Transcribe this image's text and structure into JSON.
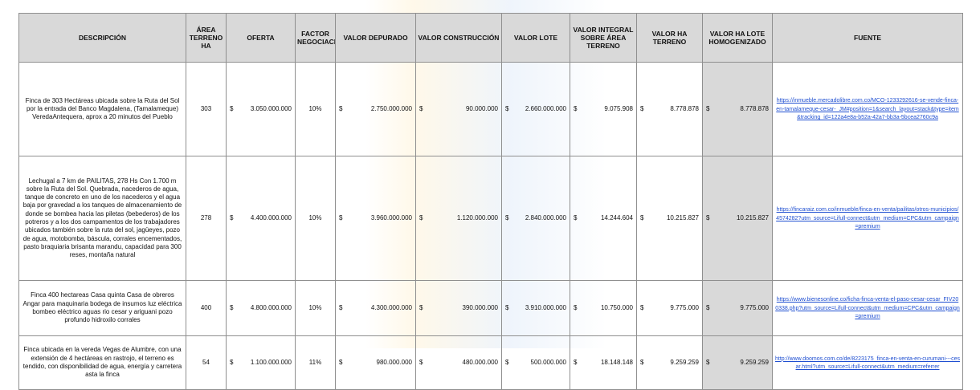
{
  "headers": {
    "descripcion": "DESCRIPCIÓN",
    "area": "ÁREA TERRENO HA",
    "oferta": "OFERTA",
    "factor": "FACTOR NEGOCIACIÓN",
    "valor_depurado": "VALOR DEPURADO",
    "valor_construccion": "VALOR CONSTRUCCIÓN",
    "valor_lote": "VALOR LOTE",
    "valor_integral": "VALOR INTEGRAL SOBRE ÁREA TERRENO",
    "valor_ha": "VALOR HA TERRENO",
    "valor_ha_lote": "VALOR HA LOTE HOMOGENIZADO",
    "fuente": "FUENTE"
  },
  "currency_symbol": "$",
  "rows": [
    {
      "descripcion": "Finca de 303 Hectáreas ubicada sobre la Ruta del Sol por la entrada del Banco Magdalena, (Tamalameque) VeredaAntequera, aprox a 20 minutos del Pueblo",
      "area": "303",
      "oferta": "3.050.000.000",
      "factor": "10%",
      "valor_depurado": "2.750.000.000",
      "valor_construccion": "90.000.000",
      "valor_lote": "2.660.000.000",
      "valor_integral": "9.075.908",
      "valor_ha": "8.778.878",
      "valor_ha_lote": "8.778.878",
      "fuente": "https://inmueble.mercadolibre.com.co/MCO-1233292616-se-vende-finca-en-tamalameque-cesar-_JM#position=1&search_layout=stack&type=item&tracking_id=122a4e8a-b52a-42a7-bb3a-5bcea2760c9a"
    },
    {
      "descripcion": "Lechugal a 7 km de PAILITAS, 278 Hs Con 1.700 m sobre la Ruta del Sol. Quebrada, nacederos de agua, tanque de concreto en uno de los nacederos y el agua baja por gravedad a los tanques de almacenamiento de donde se bombea hacia las piletas (bebederos) de los potreros y a los dos campamentos de los trabajadores ubicados también sobre la ruta del sol, jagüeyes, pozo de agua, motobomba, báscula, corrales encementados, pasto braquiaria brisanta marandu, capacidad para 300 reses, montaña natural",
      "area": "278",
      "oferta": "4.400.000.000",
      "factor": "10%",
      "valor_depurado": "3.960.000.000",
      "valor_construccion": "1.120.000.000",
      "valor_lote": "2.840.000.000",
      "valor_integral": "14.244.604",
      "valor_ha": "10.215.827",
      "valor_ha_lote": "10.215.827",
      "fuente": "https://fincaraiz.com.co/inmueble/finca-en-venta/pailitas/otros-municipios/4574282?utm_source=Lifull-connect&utm_medium=CPC&utm_campaign=premium"
    },
    {
      "descripcion": "Finca 400 hectareas Casa quinta Casa de obreros Angar para maquinaria bodega de insumos luz eléctrica bombeo eléctrico aguas rio cesar y ariguani pozo profundo hidroxilo  corrales",
      "area": "400",
      "oferta": "4.800.000.000",
      "factor": "10%",
      "valor_depurado": "4.300.000.000",
      "valor_construccion": "390.000.000",
      "valor_lote": "3.910.000.000",
      "valor_integral": "10.750.000",
      "valor_ha": "9.775.000",
      "valor_ha_lote": "9.775.000",
      "fuente": "https://www.bienesonline.co/ficha-finca-venta-el-paso-cesar-cesar_FIV200338.php?utm_source=Lifull-connect&utm_medium=CPC&utm_campaign=premium"
    },
    {
      "descripcion": "Finca ubicada en la vereda Vegas de Alumbre, con una extensión de 4 hectáreas en rastrojo, el terreno es tendido, con disponibilidad de agua, energía y carretera asta la finca",
      "area": "54",
      "oferta": "1.100.000.000",
      "factor": "11%",
      "valor_depurado": "980.000.000",
      "valor_construccion": "480.000.000",
      "valor_lote": "500.000.000",
      "valor_integral": "18.148.148",
      "valor_ha": "9.259.259",
      "valor_ha_lote": "9.259.259",
      "fuente": "http://www.doomos.com.co/de/8223175_finca-en-venta-en-curumani---cesar.html?utm_source=Lifull-connect&utm_medium=referrer"
    }
  ]
}
